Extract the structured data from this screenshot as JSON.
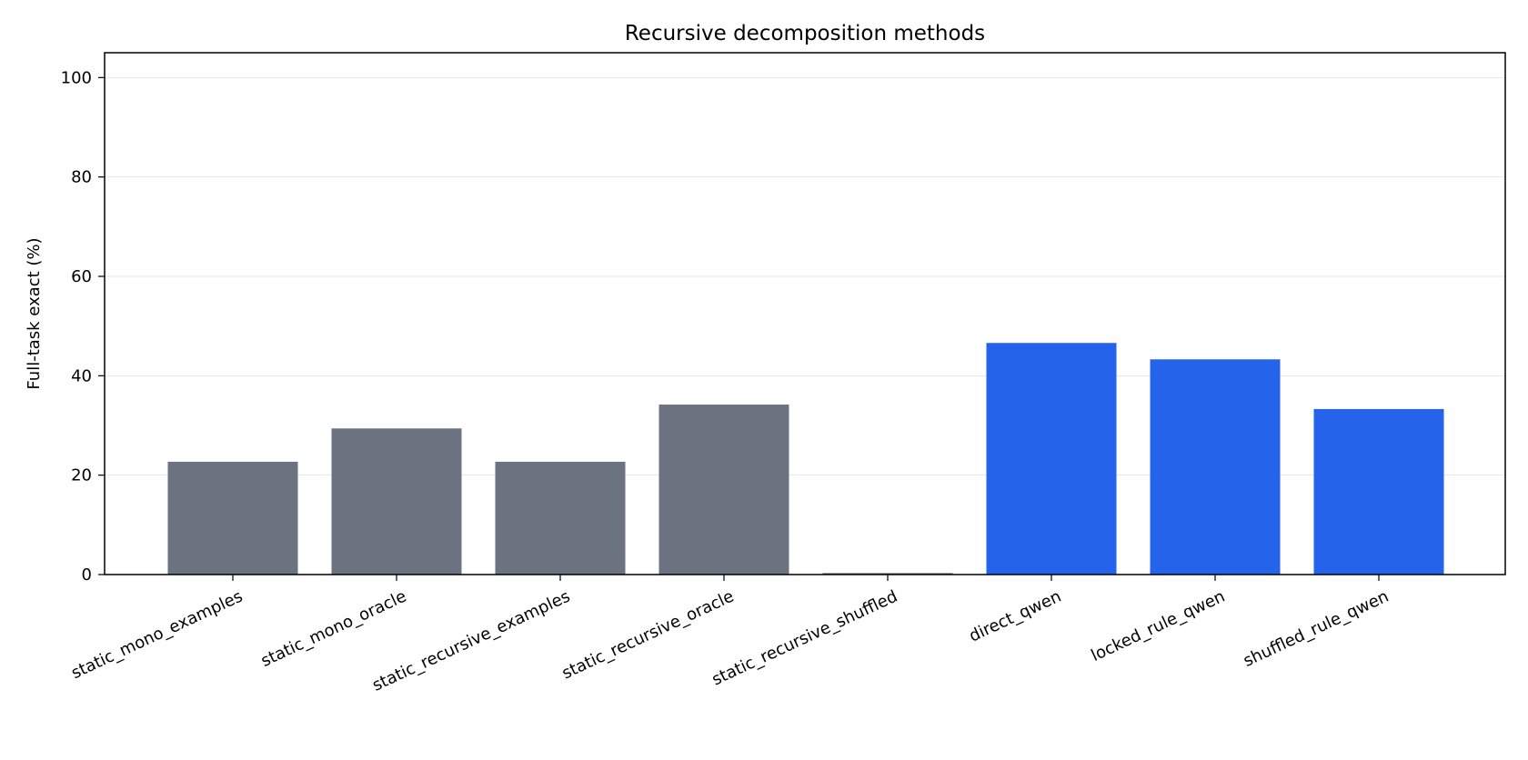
{
  "chart_data": {
    "type": "bar",
    "title": "Recursive decomposition methods",
    "xlabel": "",
    "ylabel": "Full-task exact (%)",
    "ylim": [
      0,
      105
    ],
    "yticks": [
      0,
      20,
      40,
      60,
      80,
      100
    ],
    "grid": "horizontal",
    "categories": [
      "static_mono_examples",
      "static_mono_oracle",
      "static_recursive_examples",
      "static_recursive_oracle",
      "static_recursive_shuffled",
      "direct_qwen",
      "locked_rule_qwen",
      "shuffled_rule_qwen"
    ],
    "values": [
      22.7,
      29.4,
      22.7,
      34.2,
      0.3,
      46.6,
      43.3,
      33.3
    ],
    "colors": [
      "#6b7280",
      "#6b7280",
      "#6b7280",
      "#6b7280",
      "#6b7280",
      "#2563eb",
      "#2563eb",
      "#2563eb"
    ],
    "grid_color": "#e5e5e5",
    "axis_color": "#000000"
  }
}
